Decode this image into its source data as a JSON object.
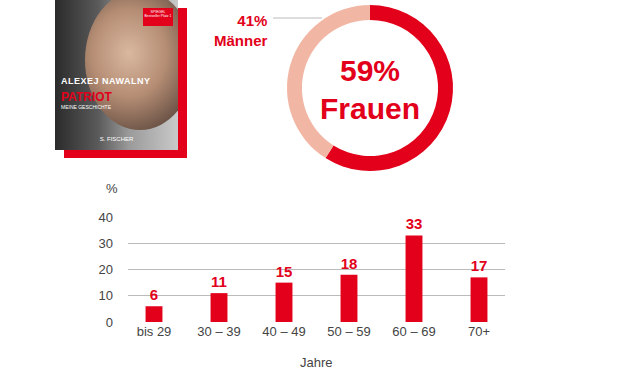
{
  "cover": {
    "author": "ALEXEJ NAWALNY",
    "title": "PATRIOT",
    "subtitle": "MEINE GESCHICHTE",
    "publisher": "S. FISCHER",
    "badge": "SPIEGEL Bestseller Platz 1"
  },
  "chart_data": [
    {
      "type": "donut",
      "categories": [
        "Frauen",
        "Männer"
      ],
      "values": [
        59,
        41
      ],
      "value_labels": [
        "59%",
        "41%"
      ],
      "colors": [
        "#e2001a",
        "#f2b7a4"
      ],
      "data_labels": true
    },
    {
      "type": "bar",
      "categories": [
        "bis 29",
        "30 – 39",
        "40 – 49",
        "50 – 59",
        "60 – 69",
        "70+"
      ],
      "values": [
        6,
        11,
        15,
        18,
        33,
        17
      ],
      "color": "#e2001a",
      "xlabel": "Jahre",
      "ylabel": "%",
      "ylim": [
        0,
        40
      ],
      "yticks": [
        0,
        10,
        20,
        30,
        40
      ],
      "grid": true,
      "data_labels": true
    }
  ]
}
